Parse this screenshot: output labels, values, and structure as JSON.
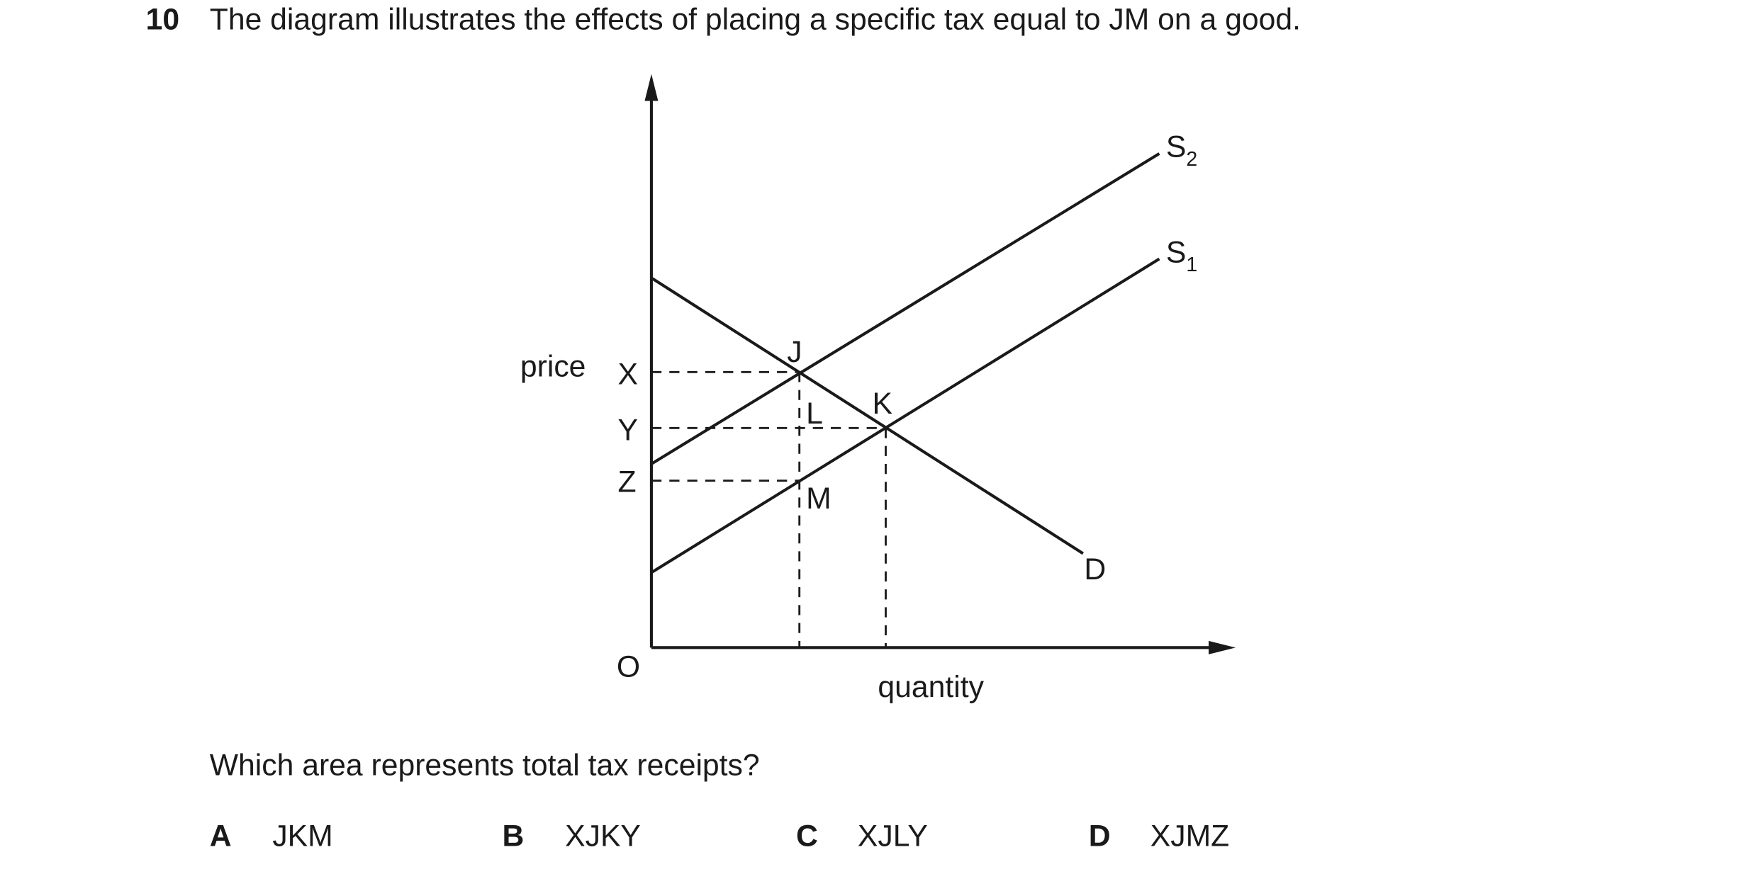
{
  "question": {
    "number": "10",
    "stem": "The diagram illustrates the effects of placing a specific tax equal to JM on a good.",
    "prompt": "Which area represents total tax receipts?"
  },
  "diagram": {
    "y_axis_label": "price",
    "x_axis_label": "quantity",
    "origin": "O",
    "price_levels": [
      "X",
      "Y",
      "Z"
    ],
    "points": [
      "J",
      "K",
      "L",
      "M"
    ],
    "curves": [
      {
        "name": "S",
        "subscript": "2"
      },
      {
        "name": "S",
        "subscript": "1"
      },
      {
        "name": "D"
      }
    ]
  },
  "options": [
    {
      "letter": "A",
      "text": "JKM"
    },
    {
      "letter": "B",
      "text": "XJKY"
    },
    {
      "letter": "C",
      "text": "XJLY"
    },
    {
      "letter": "D",
      "text": "XJMZ"
    }
  ]
}
